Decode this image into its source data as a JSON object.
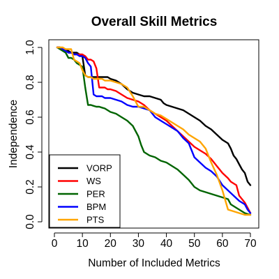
{
  "chart_data": {
    "type": "line",
    "title": "Overall Skill Metrics",
    "xlabel": "Number of Included Metrics",
    "ylabel": "Independence",
    "xlim": [
      0,
      70
    ],
    "ylim": [
      0.0,
      1.0
    ],
    "x_ticks": [
      0,
      10,
      20,
      30,
      40,
      50,
      60,
      70
    ],
    "y_ticks": [
      0.0,
      0.2,
      0.4,
      0.6,
      0.8,
      1.0
    ],
    "x_tick_labels": [
      "0",
      "10",
      "20",
      "30",
      "40",
      "50",
      "60",
      "70"
    ],
    "y_tick_labels": [
      "0.0",
      "0.2",
      "0.4",
      "0.6",
      "0.8",
      "1.0"
    ],
    "grid": false,
    "legend_position": "bottom-left",
    "series": [
      {
        "name": "VORP",
        "color": "#000000",
        "points": [
          [
            1,
            1.0
          ],
          [
            2,
            1.0
          ],
          [
            3,
            0.99
          ],
          [
            4,
            0.99
          ],
          [
            5,
            0.98
          ],
          [
            6,
            0.97
          ],
          [
            7,
            0.97
          ],
          [
            8,
            0.97
          ],
          [
            9,
            0.96
          ],
          [
            10,
            0.95
          ],
          [
            11,
            0.84
          ],
          [
            12,
            0.83
          ],
          [
            13,
            0.83
          ],
          [
            14,
            0.83
          ],
          [
            15,
            0.83
          ],
          [
            16,
            0.83
          ],
          [
            17,
            0.83
          ],
          [
            18,
            0.83
          ],
          [
            19,
            0.83
          ],
          [
            20,
            0.82
          ],
          [
            22,
            0.81
          ],
          [
            24,
            0.79
          ],
          [
            26,
            0.76
          ],
          [
            28,
            0.74
          ],
          [
            30,
            0.73
          ],
          [
            32,
            0.72
          ],
          [
            34,
            0.72
          ],
          [
            36,
            0.71
          ],
          [
            38,
            0.7
          ],
          [
            39,
            0.68
          ],
          [
            40,
            0.67
          ],
          [
            42,
            0.66
          ],
          [
            44,
            0.65
          ],
          [
            46,
            0.64
          ],
          [
            48,
            0.62
          ],
          [
            50,
            0.6
          ],
          [
            52,
            0.58
          ],
          [
            54,
            0.55
          ],
          [
            56,
            0.53
          ],
          [
            58,
            0.5
          ],
          [
            60,
            0.47
          ],
          [
            62,
            0.45
          ],
          [
            63,
            0.42
          ],
          [
            64,
            0.38
          ],
          [
            65,
            0.36
          ],
          [
            66,
            0.33
          ],
          [
            67,
            0.3
          ],
          [
            68,
            0.28
          ],
          [
            69,
            0.23
          ],
          [
            70,
            0.21
          ]
        ]
      },
      {
        "name": "WS",
        "color": "#ff0000",
        "points": [
          [
            1,
            1.0
          ],
          [
            2,
            1.0
          ],
          [
            3,
            0.99
          ],
          [
            4,
            0.98
          ],
          [
            5,
            0.97
          ],
          [
            6,
            0.97
          ],
          [
            7,
            0.96
          ],
          [
            8,
            0.96
          ],
          [
            9,
            0.96
          ],
          [
            10,
            0.96
          ],
          [
            11,
            0.95
          ],
          [
            12,
            0.93
          ],
          [
            13,
            0.93
          ],
          [
            14,
            0.92
          ],
          [
            15,
            0.88
          ],
          [
            16,
            0.77
          ],
          [
            17,
            0.77
          ],
          [
            18,
            0.77
          ],
          [
            19,
            0.76
          ],
          [
            20,
            0.76
          ],
          [
            22,
            0.75
          ],
          [
            24,
            0.73
          ],
          [
            26,
            0.71
          ],
          [
            28,
            0.7
          ],
          [
            30,
            0.69
          ],
          [
            32,
            0.67
          ],
          [
            34,
            0.64
          ],
          [
            36,
            0.62
          ],
          [
            38,
            0.6
          ],
          [
            40,
            0.58
          ],
          [
            42,
            0.55
          ],
          [
            44,
            0.52
          ],
          [
            46,
            0.49
          ],
          [
            48,
            0.46
          ],
          [
            50,
            0.43
          ],
          [
            52,
            0.41
          ],
          [
            54,
            0.39
          ],
          [
            56,
            0.36
          ],
          [
            58,
            0.32
          ],
          [
            60,
            0.28
          ],
          [
            62,
            0.25
          ],
          [
            63,
            0.23
          ],
          [
            64,
            0.22
          ],
          [
            65,
            0.21
          ],
          [
            66,
            0.15
          ],
          [
            67,
            0.13
          ],
          [
            68,
            0.11
          ],
          [
            69,
            0.08
          ],
          [
            70,
            0.05
          ]
        ]
      },
      {
        "name": "PER",
        "color": "#006400",
        "points": [
          [
            1,
            1.0
          ],
          [
            2,
            0.99
          ],
          [
            3,
            0.98
          ],
          [
            4,
            0.97
          ],
          [
            5,
            0.94
          ],
          [
            6,
            0.94
          ],
          [
            7,
            0.93
          ],
          [
            8,
            0.91
          ],
          [
            9,
            0.9
          ],
          [
            10,
            0.89
          ],
          [
            11,
            0.77
          ],
          [
            12,
            0.67
          ],
          [
            13,
            0.67
          ],
          [
            14,
            0.665
          ],
          [
            15,
            0.66
          ],
          [
            16,
            0.66
          ],
          [
            17,
            0.655
          ],
          [
            18,
            0.65
          ],
          [
            19,
            0.64
          ],
          [
            20,
            0.63
          ],
          [
            22,
            0.62
          ],
          [
            24,
            0.6
          ],
          [
            26,
            0.58
          ],
          [
            28,
            0.55
          ],
          [
            29,
            0.52
          ],
          [
            30,
            0.49
          ],
          [
            31,
            0.44
          ],
          [
            32,
            0.4
          ],
          [
            34,
            0.38
          ],
          [
            36,
            0.37
          ],
          [
            38,
            0.35
          ],
          [
            40,
            0.34
          ],
          [
            42,
            0.32
          ],
          [
            44,
            0.3
          ],
          [
            46,
            0.27
          ],
          [
            48,
            0.24
          ],
          [
            50,
            0.2
          ],
          [
            52,
            0.18
          ],
          [
            54,
            0.17
          ],
          [
            56,
            0.16
          ],
          [
            58,
            0.15
          ],
          [
            60,
            0.14
          ],
          [
            62,
            0.13
          ],
          [
            63,
            0.1
          ],
          [
            64,
            0.09
          ],
          [
            66,
            0.07
          ],
          [
            68,
            0.05
          ],
          [
            70,
            0.04
          ]
        ]
      },
      {
        "name": "BPM",
        "color": "#0000ff",
        "points": [
          [
            1,
            1.0
          ],
          [
            2,
            1.0
          ],
          [
            3,
            0.99
          ],
          [
            4,
            0.98
          ],
          [
            5,
            0.97
          ],
          [
            6,
            0.97
          ],
          [
            7,
            0.96
          ],
          [
            8,
            0.96
          ],
          [
            9,
            0.95
          ],
          [
            10,
            0.95
          ],
          [
            11,
            0.94
          ],
          [
            12,
            0.91
          ],
          [
            13,
            0.89
          ],
          [
            14,
            0.73
          ],
          [
            15,
            0.72
          ],
          [
            16,
            0.72
          ],
          [
            17,
            0.72
          ],
          [
            18,
            0.71
          ],
          [
            19,
            0.71
          ],
          [
            20,
            0.71
          ],
          [
            22,
            0.7
          ],
          [
            24,
            0.69
          ],
          [
            26,
            0.67
          ],
          [
            28,
            0.66
          ],
          [
            30,
            0.66
          ],
          [
            32,
            0.65
          ],
          [
            34,
            0.64
          ],
          [
            36,
            0.6
          ],
          [
            38,
            0.58
          ],
          [
            40,
            0.56
          ],
          [
            42,
            0.54
          ],
          [
            44,
            0.52
          ],
          [
            46,
            0.48
          ],
          [
            48,
            0.45
          ],
          [
            50,
            0.37
          ],
          [
            52,
            0.34
          ],
          [
            54,
            0.31
          ],
          [
            56,
            0.29
          ],
          [
            58,
            0.26
          ],
          [
            60,
            0.21
          ],
          [
            62,
            0.18
          ],
          [
            64,
            0.15
          ],
          [
            66,
            0.12
          ],
          [
            68,
            0.1
          ],
          [
            69,
            0.07
          ],
          [
            70,
            0.05
          ]
        ]
      },
      {
        "name": "PTS",
        "color": "#ffa500",
        "points": [
          [
            1,
            1.0
          ],
          [
            2,
            1.0
          ],
          [
            3,
            1.0
          ],
          [
            4,
            0.99
          ],
          [
            5,
            0.99
          ],
          [
            6,
            0.99
          ],
          [
            7,
            0.93
          ],
          [
            8,
            0.92
          ],
          [
            9,
            0.91
          ],
          [
            10,
            0.87
          ],
          [
            11,
            0.84
          ],
          [
            12,
            0.83
          ],
          [
            13,
            0.83
          ],
          [
            14,
            0.82
          ],
          [
            15,
            0.82
          ],
          [
            16,
            0.82
          ],
          [
            17,
            0.82
          ],
          [
            18,
            0.81
          ],
          [
            19,
            0.81
          ],
          [
            20,
            0.81
          ],
          [
            22,
            0.8
          ],
          [
            24,
            0.79
          ],
          [
            26,
            0.77
          ],
          [
            28,
            0.72
          ],
          [
            30,
            0.66
          ],
          [
            32,
            0.66
          ],
          [
            34,
            0.64
          ],
          [
            36,
            0.62
          ],
          [
            38,
            0.61
          ],
          [
            40,
            0.59
          ],
          [
            42,
            0.57
          ],
          [
            44,
            0.55
          ],
          [
            46,
            0.53
          ],
          [
            48,
            0.5
          ],
          [
            50,
            0.48
          ],
          [
            52,
            0.46
          ],
          [
            54,
            0.42
          ],
          [
            56,
            0.34
          ],
          [
            58,
            0.27
          ],
          [
            60,
            0.18
          ],
          [
            62,
            0.07
          ],
          [
            64,
            0.06
          ],
          [
            66,
            0.05
          ],
          [
            68,
            0.04
          ],
          [
            70,
            0.04
          ]
        ]
      }
    ]
  }
}
